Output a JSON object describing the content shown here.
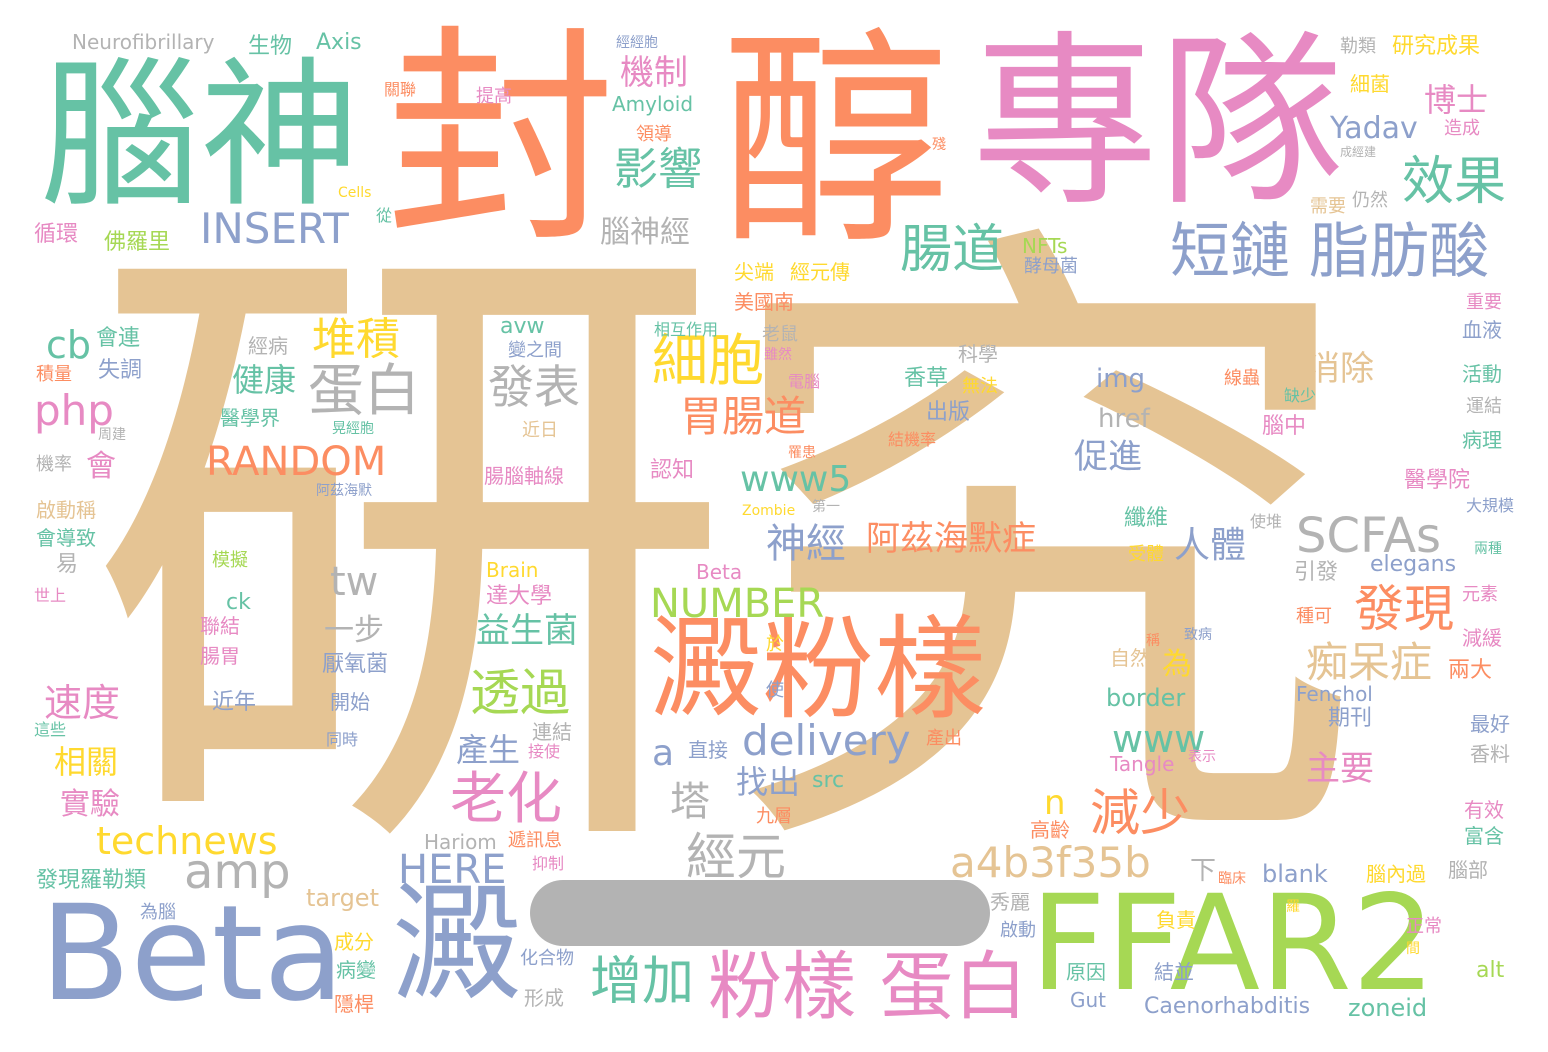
{
  "palette": {
    "tan": "#e5c494",
    "orange": "#fc8d62",
    "pink": "#e78ac3",
    "teal": "#66c2a5",
    "blue": "#8da0cb",
    "green": "#a6d854",
    "yellow": "#ffd92f",
    "gray": "#b3b3b3"
  },
  "words": [
    {
      "text": "研究",
      "color": "tan"
    },
    {
      "text": "專隊",
      "color": "pink"
    },
    {
      "text": "醇",
      "color": "orange"
    },
    {
      "text": "封",
      "color": "orange"
    },
    {
      "text": "腦神",
      "color": "teal"
    },
    {
      "text": "Beta",
      "color": "blue"
    },
    {
      "text": "FFAR2",
      "color": "green"
    },
    {
      "text": "澱",
      "color": "blue"
    },
    {
      "text": "澱粉樣",
      "color": "orange"
    },
    {
      "text": "粉樣 蛋白",
      "color": "pink"
    },
    {
      "text": "短鏈 脂肪酸",
      "color": "blue"
    },
    {
      "text": "腸道",
      "color": "teal"
    },
    {
      "text": "效果",
      "color": "teal"
    },
    {
      "text": "SCFAs",
      "color": "gray"
    },
    {
      "text": "a4b3f35b",
      "color": "tan"
    },
    {
      "text": "INSERT",
      "color": "blue"
    },
    {
      "text": "RANDOM",
      "color": "orange"
    },
    {
      "text": "NUMBER",
      "color": "green"
    },
    {
      "text": "amp",
      "color": "gray"
    },
    {
      "text": "technews",
      "color": "yellow"
    },
    {
      "text": "HERE",
      "color": "blue"
    },
    {
      "text": "delivery",
      "color": "blue"
    },
    {
      "text": "www5",
      "color": "teal"
    },
    {
      "text": "www",
      "color": "teal"
    },
    {
      "text": "增加",
      "color": "teal"
    },
    {
      "text": "老化",
      "color": "pink"
    },
    {
      "text": "細胞",
      "color": "yellow"
    },
    {
      "text": "胃腸道",
      "color": "orange"
    },
    {
      "text": "蛋白",
      "color": "gray"
    },
    {
      "text": "堆積",
      "color": "yellow"
    },
    {
      "text": "發表",
      "color": "gray"
    },
    {
      "text": "發現",
      "color": "orange"
    },
    {
      "text": "痴呆症",
      "color": "tan"
    },
    {
      "text": "減少",
      "color": "orange"
    },
    {
      "text": "經元",
      "color": "gray"
    },
    {
      "text": "透過",
      "color": "green"
    },
    {
      "text": "阿茲海默症",
      "color": "orange"
    },
    {
      "text": "神經",
      "color": "blue"
    },
    {
      "text": "影響",
      "color": "teal"
    },
    {
      "text": "機制",
      "color": "pink"
    },
    {
      "text": "php",
      "color": "pink"
    },
    {
      "text": "cb",
      "color": "teal"
    },
    {
      "text": "tw",
      "color": "gray"
    },
    {
      "text": "健康",
      "color": "teal"
    },
    {
      "text": "速度",
      "color": "pink"
    },
    {
      "text": "益生菌",
      "color": "teal"
    },
    {
      "text": "人體",
      "color": "blue"
    },
    {
      "text": "消除",
      "color": "tan"
    },
    {
      "text": "促進",
      "color": "blue"
    },
    {
      "text": "主要",
      "color": "pink"
    },
    {
      "text": "Yadav",
      "color": "blue"
    },
    {
      "text": "博士",
      "color": "pink"
    },
    {
      "text": "研究成果",
      "color": "yellow"
    },
    {
      "text": "腦神經",
      "color": "gray"
    },
    {
      "text": "找出",
      "color": "blue"
    },
    {
      "text": "塔",
      "color": "gray"
    },
    {
      "text": "產生",
      "color": "blue"
    },
    {
      "text": "相關",
      "color": "yellow"
    },
    {
      "text": "實驗",
      "color": "pink"
    },
    {
      "text": "會",
      "color": "pink"
    },
    {
      "text": "一步",
      "color": "gray"
    },
    {
      "text": "Neurofibrillary",
      "color": "gray"
    },
    {
      "text": "生物",
      "color": "teal"
    },
    {
      "text": "Axis",
      "color": "teal"
    },
    {
      "text": "Amyloid",
      "color": "teal"
    },
    {
      "text": "a",
      "color": "blue"
    },
    {
      "text": "n",
      "color": "yellow"
    },
    {
      "text": "img",
      "color": "blue"
    },
    {
      "text": "href",
      "color": "gray"
    },
    {
      "text": "elegans",
      "color": "blue"
    },
    {
      "text": "border",
      "color": "teal"
    },
    {
      "text": "Fenchol",
      "color": "blue"
    },
    {
      "text": "Tangle",
      "color": "pink"
    },
    {
      "text": "Caenorhabditis",
      "color": "blue"
    },
    {
      "text": "zoneid",
      "color": "teal"
    },
    {
      "text": "Gut",
      "color": "blue"
    },
    {
      "text": "blank",
      "color": "blue"
    },
    {
      "text": "target",
      "color": "tan"
    },
    {
      "text": "Hariom",
      "color": "gray"
    },
    {
      "text": "src",
      "color": "teal"
    },
    {
      "text": "avw",
      "color": "teal"
    },
    {
      "text": "ck",
      "color": "teal"
    },
    {
      "text": "Brain",
      "color": "yellow"
    },
    {
      "text": "Beta",
      "color": "pink"
    },
    {
      "text": "alt",
      "color": "green"
    },
    {
      "text": "NFTs",
      "color": "green"
    },
    {
      "text": "Zombie",
      "color": "yellow"
    },
    {
      "text": "Cells",
      "color": "yellow"
    },
    {
      "text": "循環",
      "color": "pink"
    },
    {
      "text": "佛羅里",
      "color": "green"
    },
    {
      "text": "會連",
      "color": "teal"
    },
    {
      "text": "失調",
      "color": "blue"
    },
    {
      "text": "積量",
      "color": "orange"
    },
    {
      "text": "醫學界",
      "color": "teal"
    },
    {
      "text": "經病",
      "color": "gray"
    },
    {
      "text": "周建",
      "color": "gray"
    },
    {
      "text": "機率",
      "color": "gray"
    },
    {
      "text": "啟動稱",
      "color": "tan"
    },
    {
      "text": "會導致",
      "color": "teal"
    },
    {
      "text": "易",
      "color": "gray"
    },
    {
      "text": "世上",
      "color": "pink"
    },
    {
      "text": "這些",
      "color": "teal"
    },
    {
      "text": "發現羅勒類",
      "color": "teal"
    },
    {
      "text": "為腦",
      "color": "blue"
    },
    {
      "text": "病變",
      "color": "teal"
    },
    {
      "text": "成分",
      "color": "yellow"
    },
    {
      "text": "隱桿",
      "color": "orange"
    },
    {
      "text": "化合物",
      "color": "blue"
    },
    {
      "text": "形成",
      "color": "gray"
    },
    {
      "text": "近年",
      "color": "blue"
    },
    {
      "text": "模擬",
      "color": "green"
    },
    {
      "text": "聯結",
      "color": "pink"
    },
    {
      "text": "腸胃",
      "color": "pink"
    },
    {
      "text": "開始",
      "color": "blue"
    },
    {
      "text": "同時",
      "color": "blue"
    },
    {
      "text": "厭氧菌",
      "color": "blue"
    },
    {
      "text": "達大學",
      "color": "pink"
    },
    {
      "text": "連結",
      "color": "gray"
    },
    {
      "text": "接使",
      "color": "pink"
    },
    {
      "text": "直接",
      "color": "blue"
    },
    {
      "text": "遞訊息",
      "color": "orange"
    },
    {
      "text": "抑制",
      "color": "pink"
    },
    {
      "text": "九層",
      "color": "orange"
    },
    {
      "text": "腸腦軸線",
      "color": "pink"
    },
    {
      "text": "認知",
      "color": "pink"
    },
    {
      "text": "阿茲海默",
      "color": "blue"
    },
    {
      "text": "經經胞",
      "color": "blue"
    },
    {
      "text": "提高",
      "color": "pink"
    },
    {
      "text": "關聯",
      "color": "orange"
    },
    {
      "text": "領導",
      "color": "orange"
    },
    {
      "text": "從",
      "color": "teal"
    },
    {
      "text": "尖端",
      "color": "yellow"
    },
    {
      "text": "經元傳",
      "color": "yellow"
    },
    {
      "text": "美國南",
      "color": "orange"
    },
    {
      "text": "相互作用",
      "color": "teal"
    },
    {
      "text": "變之間",
      "color": "blue"
    },
    {
      "text": "老鼠",
      "color": "gray"
    },
    {
      "text": "雖然",
      "color": "pink"
    },
    {
      "text": "電腦",
      "color": "pink"
    },
    {
      "text": "罹患",
      "color": "orange"
    },
    {
      "text": "近日",
      "color": "tan"
    },
    {
      "text": "第一",
      "color": "gray"
    },
    {
      "text": "於",
      "color": "yellow"
    },
    {
      "text": "使",
      "color": "blue"
    },
    {
      "text": "酵母菌",
      "color": "blue"
    },
    {
      "text": "科學",
      "color": "gray"
    },
    {
      "text": "香草",
      "color": "teal"
    },
    {
      "text": "無法",
      "color": "yellow"
    },
    {
      "text": "出版",
      "color": "blue"
    },
    {
      "text": "結機率",
      "color": "orange"
    },
    {
      "text": "線蟲",
      "color": "orange"
    },
    {
      "text": "缺少",
      "color": "teal"
    },
    {
      "text": "腦中",
      "color": "pink"
    },
    {
      "text": "纖維",
      "color": "teal"
    },
    {
      "text": "使堆",
      "color": "gray"
    },
    {
      "text": "受體",
      "color": "yellow"
    },
    {
      "text": "引發",
      "color": "gray"
    },
    {
      "text": "種可",
      "color": "orange"
    },
    {
      "text": "致病",
      "color": "blue"
    },
    {
      "text": "稱",
      "color": "orange"
    },
    {
      "text": "自然",
      "color": "tan"
    },
    {
      "text": "為",
      "color": "yellow"
    },
    {
      "text": "期刊",
      "color": "blue"
    },
    {
      "text": "表示",
      "color": "pink"
    },
    {
      "text": "產出",
      "color": "orange"
    },
    {
      "text": "高齡",
      "color": "orange"
    },
    {
      "text": "下",
      "color": "gray"
    },
    {
      "text": "臨床",
      "color": "orange"
    },
    {
      "text": "腦內過",
      "color": "yellow"
    },
    {
      "text": "秀麗",
      "color": "gray"
    },
    {
      "text": "負責",
      "color": "yellow"
    },
    {
      "text": "羅",
      "color": "yellow"
    },
    {
      "text": "啟動",
      "color": "blue"
    },
    {
      "text": "原因",
      "color": "teal"
    },
    {
      "text": "結並",
      "color": "blue"
    },
    {
      "text": "正常",
      "color": "pink"
    },
    {
      "text": "間",
      "color": "yellow"
    },
    {
      "text": "腦部",
      "color": "gray"
    },
    {
      "text": "細菌",
      "color": "yellow"
    },
    {
      "text": "造成",
      "color": "pink"
    },
    {
      "text": "勒類",
      "color": "gray"
    },
    {
      "text": "殘",
      "color": "orange"
    },
    {
      "text": "成經建",
      "color": "gray"
    },
    {
      "text": "需要",
      "color": "tan"
    },
    {
      "text": "仍然",
      "color": "gray"
    },
    {
      "text": "重要",
      "color": "pink"
    },
    {
      "text": "血液",
      "color": "blue"
    },
    {
      "text": "活動",
      "color": "teal"
    },
    {
      "text": "運結",
      "color": "gray"
    },
    {
      "text": "病理",
      "color": "teal"
    },
    {
      "text": "醫學院",
      "color": "pink"
    },
    {
      "text": "大規模",
      "color": "blue"
    },
    {
      "text": "兩種",
      "color": "teal"
    },
    {
      "text": "元素",
      "color": "pink"
    },
    {
      "text": "減緩",
      "color": "pink"
    },
    {
      "text": "兩大",
      "color": "orange"
    },
    {
      "text": "最好",
      "color": "blue"
    },
    {
      "text": "香料",
      "color": "gray"
    },
    {
      "text": "有效",
      "color": "pink"
    },
    {
      "text": "富含",
      "color": "teal"
    },
    {
      "text": "晃經胞",
      "color": "teal"
    }
  ]
}
